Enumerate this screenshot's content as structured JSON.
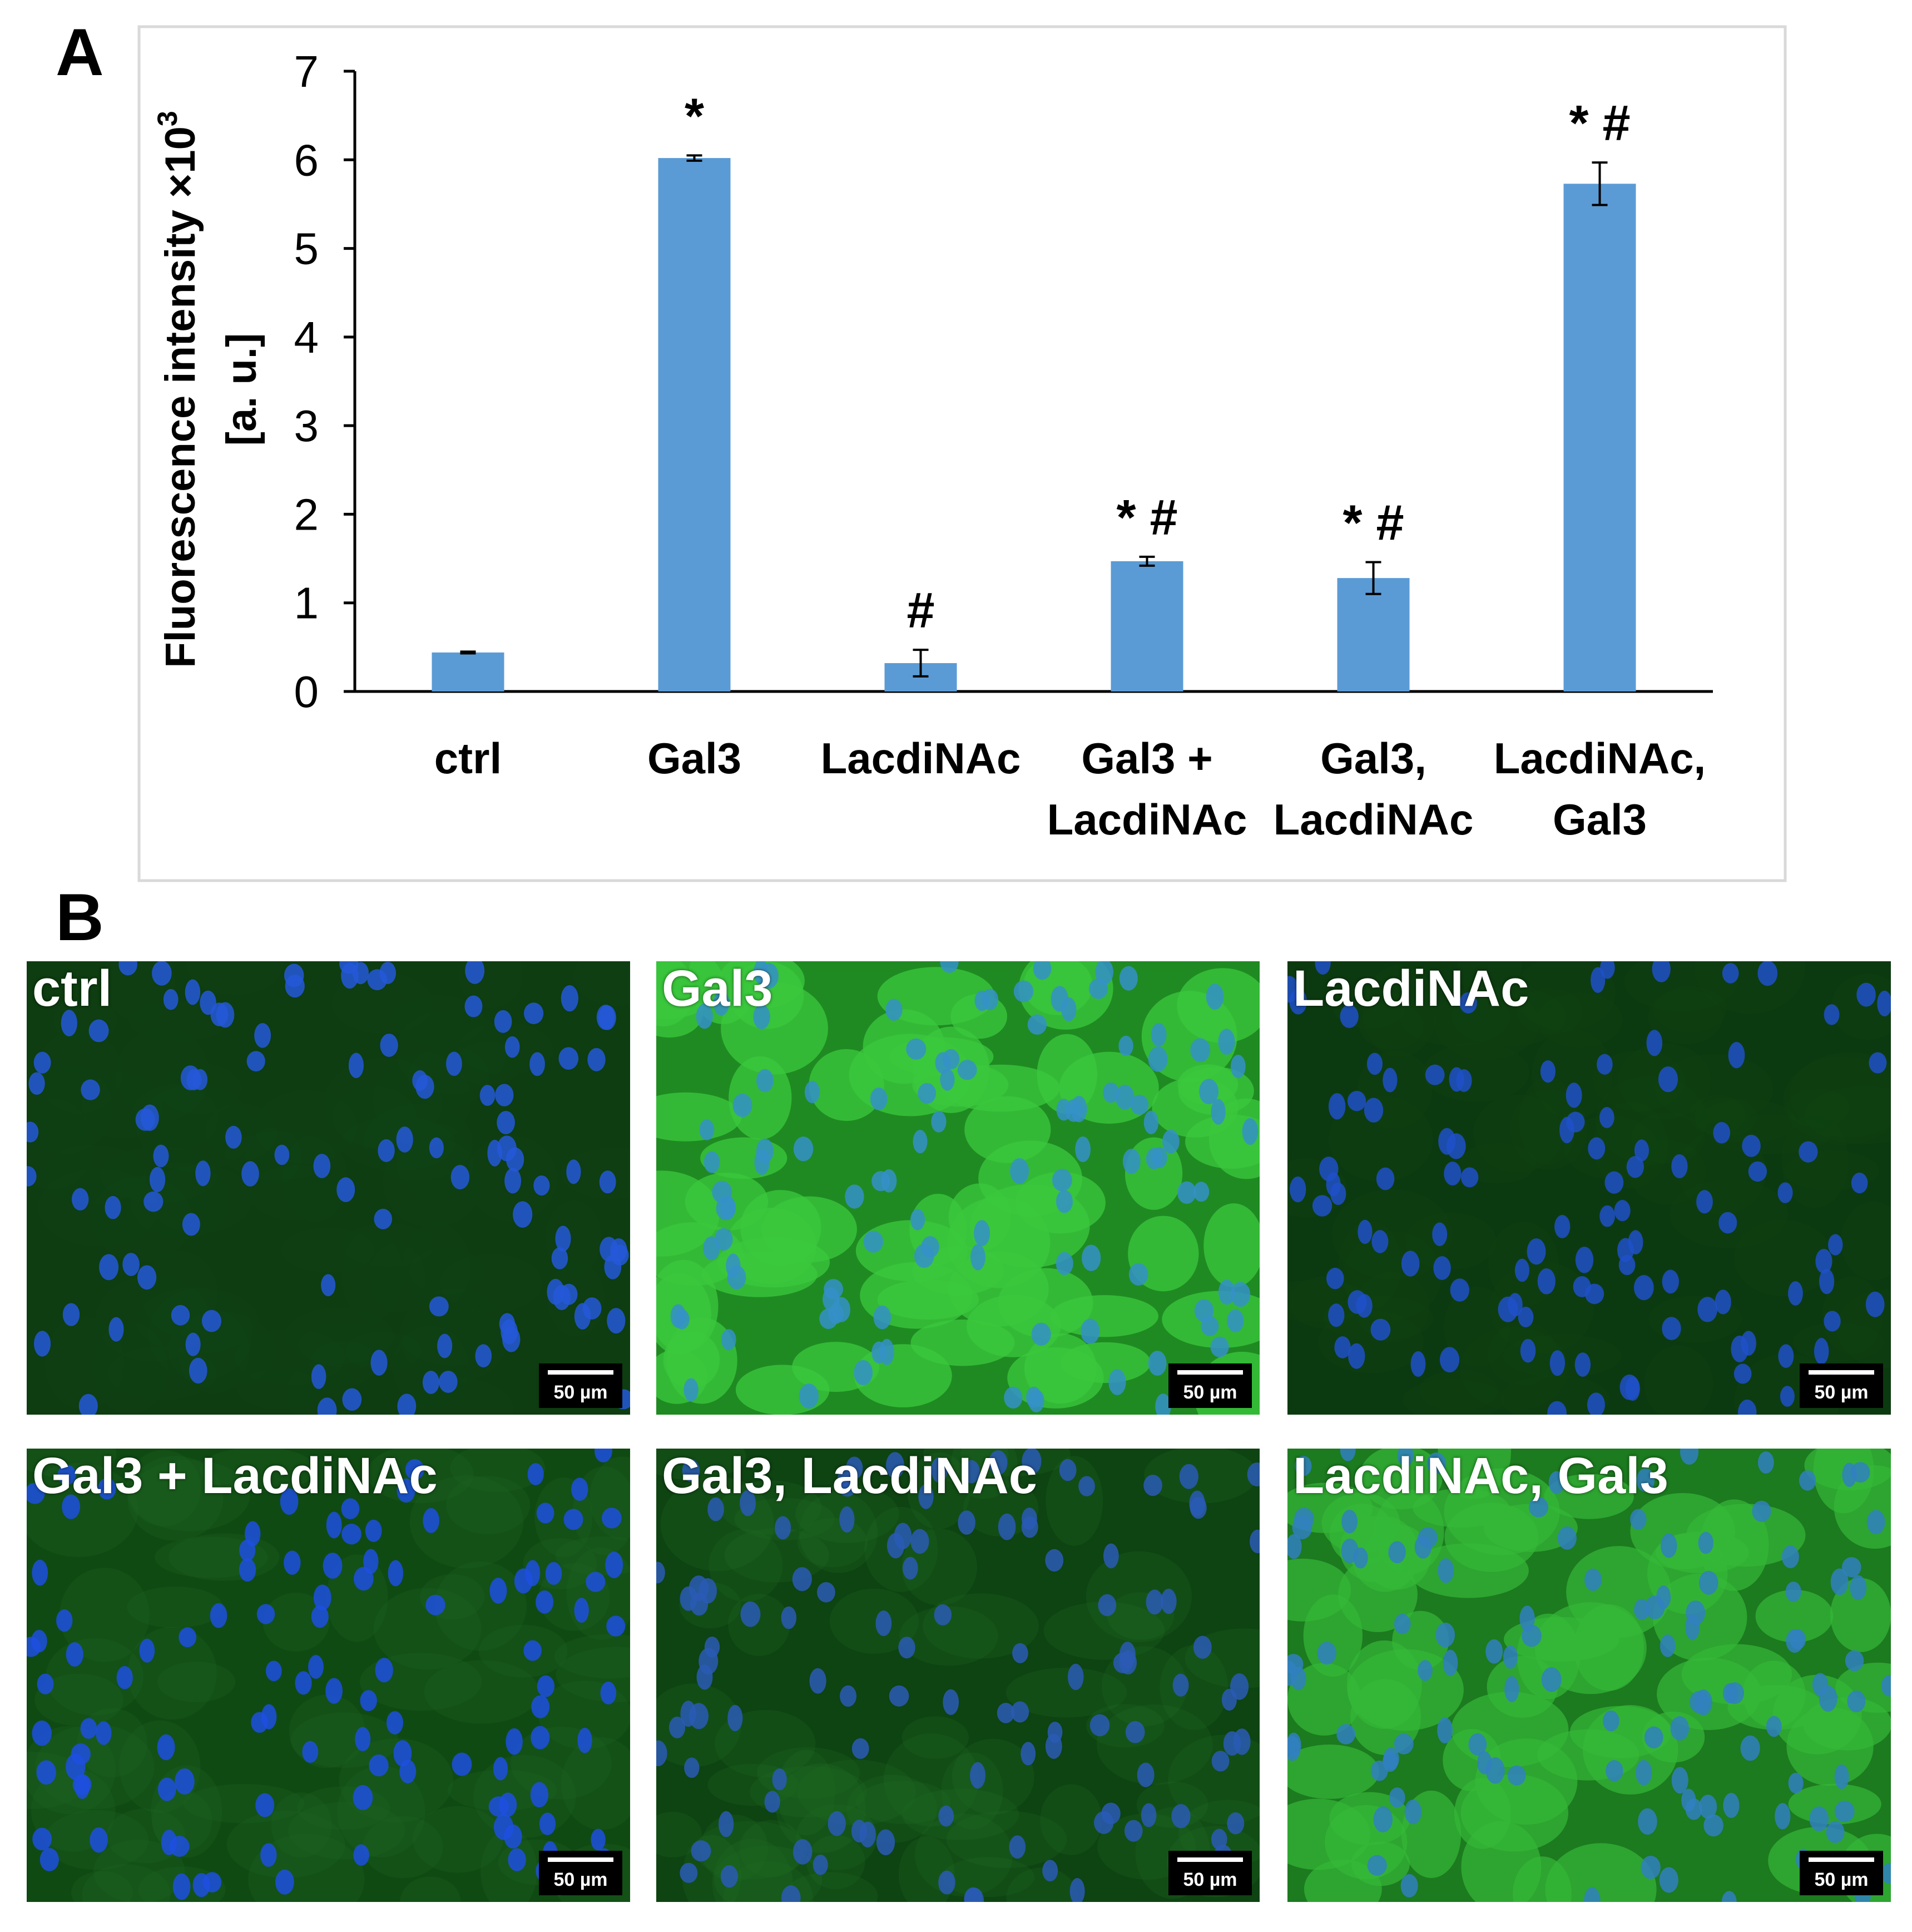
{
  "panels": {
    "a_label": "A",
    "b_label": "B"
  },
  "chart_data": {
    "type": "bar",
    "categories": [
      "ctrl",
      "Gal3",
      "LacdiNAc",
      "Gal3 + LacdiNAc",
      "Gal3, LacdiNAc",
      "LacdiNAc, Gal3"
    ],
    "category_lines": [
      [
        "ctrl"
      ],
      [
        "Gal3"
      ],
      [
        "LacdiNAc"
      ],
      [
        "Gal3 +",
        "LacdiNAc"
      ],
      [
        "Gal3,",
        "LacdiNAc"
      ],
      [
        "LacdiNAc,",
        "Gal3"
      ]
    ],
    "values": [
      0.44,
      6.02,
      0.32,
      1.47,
      1.28,
      5.73
    ],
    "errors": [
      0.01,
      0.03,
      0.15,
      0.05,
      0.18,
      0.24
    ],
    "annotations": [
      "",
      "*",
      "#",
      "* #",
      "* #",
      "* #"
    ],
    "ylabel_line1": "Fluorescence intensity ×10",
    "ylabel_sup": "3",
    "ylabel_line2": "[a. u.]",
    "ylim": [
      0,
      7
    ],
    "yticks": [
      "0",
      "1",
      "2",
      "3",
      "4",
      "5",
      "6",
      "7"
    ],
    "bar_color": "#5b9bd5",
    "grid": false
  },
  "micrographs": {
    "scale_bar": "50 µm",
    "items": [
      {
        "label": "ctrl",
        "bg": "#0d3d10",
        "cyto": "#164d18",
        "nuc": "#2558d8",
        "cell_alpha": 0.15
      },
      {
        "label": "Gal3",
        "bg": "#1f8a22",
        "cyto": "#3bc83d",
        "nuc": "#3590c8",
        "cell_alpha": 0.75
      },
      {
        "label": "LacdiNAc",
        "bg": "#0c3a10",
        "cyto": "#144a16",
        "nuc": "#2050c8",
        "cell_alpha": 0.15
      },
      {
        "label": "Gal3 + LacdiNAc",
        "bg": "#0f4a13",
        "cyto": "#1d6320",
        "nuc": "#1d4fe0",
        "cell_alpha": 0.3
      },
      {
        "label": "Gal3, LacdiNAc",
        "bg": "#0e4312",
        "cyto": "#1e6a22",
        "nuc": "#2a5ab5",
        "cell_alpha": 0.25
      },
      {
        "label": "LacdiNAc, Gal3",
        "bg": "#1c7a1f",
        "cyto": "#35b838",
        "nuc": "#3080c0",
        "cell_alpha": 0.7
      }
    ]
  }
}
